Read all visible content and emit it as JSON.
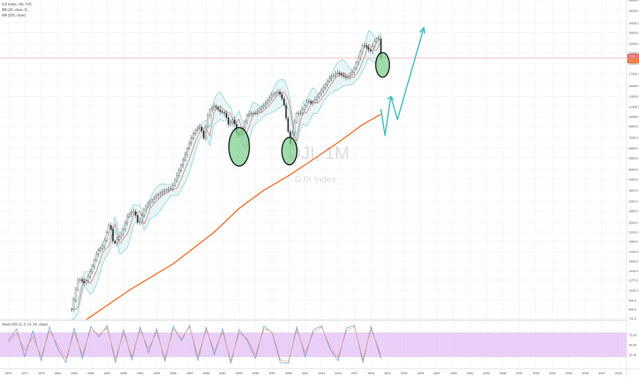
{
  "legend": {
    "symbol_line": "DJI Index, 1M, TVC",
    "bb_line": "BB (20, close, 2)",
    "ma_line": "MA (200, close)"
  },
  "watermark": {
    "symbol": "DJI, 1M",
    "name": "DJX Index"
  },
  "oscillator": {
    "label": "Stoch RSI (3, 3, 14, 14, close)"
  },
  "colors": {
    "grid": "#eeeeee",
    "candle": "#333333",
    "bb_band": "#6cc3c8",
    "bb_fill": "#e6f4f5",
    "bb_mid": "#c0392b",
    "ma": "#f0641e",
    "price_line": "#f3a5a5",
    "circle_fill": "#7fcf8f",
    "arrow": "#3fbcbd",
    "osc_band": "#e3bff5",
    "osc_k": "#5b8fd6",
    "osc_d": "#f29b6b"
  },
  "price_badges": [
    "9596.2",
    "872.15"
  ],
  "chart_data": [
    {
      "type": "line",
      "title": "DJI Index, 1M, TVC",
      "scale": "log",
      "ylim": [
        700,
        46000
      ],
      "y_ticks": [
        "46000.0",
        "40000.0",
        "34000.0",
        "30000.0",
        "26000.0",
        "23000.0",
        "20000.0",
        "17500.0",
        "15000.0",
        "13000.0",
        "11400.0",
        "10000.0",
        "8800.0",
        "7600.0",
        "6600.0",
        "5800.0",
        "5000.0",
        "4400.0",
        "3800.0",
        "3300.0",
        "2900.0",
        "2500.0",
        "2200.0",
        "1950.0",
        "1700.0",
        "1500.0",
        "1325.0",
        "1175.0",
        "1025.0",
        "900.0",
        "800.0",
        "710.0"
      ],
      "x_ticks": [
        "1975",
        "1977",
        "1979",
        "1981",
        "1983",
        "1985",
        "1987",
        "1989",
        "1991",
        "1993",
        "1995",
        "1997",
        "1999",
        "2001",
        "2003",
        "2005",
        "2007",
        "2009",
        "2011",
        "2013",
        "2015",
        "2017",
        "2019",
        "2021",
        "2023",
        "2025",
        "2027",
        "2029",
        "2031",
        "2033",
        "2035",
        "2037",
        "2039",
        "2041",
        "2043",
        "2045",
        "2047",
        "2049"
      ],
      "xlim": [
        1974,
        2050
      ],
      "price_series": {
        "name": "DJI",
        "x": [
          1982.7,
          1983.5,
          1984.3,
          1985,
          1985.8,
          1986.5,
          1987.3,
          1987.8,
          1988.2,
          1988.8,
          1989.5,
          1990.3,
          1990.8,
          1991.5,
          1992.3,
          1993,
          1994,
          1994.8,
          1995.5,
          1996.3,
          1997,
          1997.6,
          1998.3,
          1998.7,
          1999.3,
          2000,
          2000.7,
          2001.3,
          2001.7,
          2002.3,
          2002.8,
          2003.3,
          2004,
          2005,
          2006,
          2007,
          2007.8,
          2008.4,
          2008.9,
          2009.2,
          2009.9,
          2010.5,
          2011.3,
          2011.8,
          2012.5,
          2013.3,
          2014,
          2014.9,
          2015.6,
          2016.1,
          2016.8,
          2017.5,
          2018,
          2018.6,
          2018.9,
          2019.4,
          2019.9,
          2020.1,
          2020.2
        ],
        "y": [
          800,
          1200,
          1120,
          1320,
          1700,
          1830,
          2500,
          1840,
          2000,
          2160,
          2750,
          2900,
          2400,
          3000,
          3300,
          3550,
          3800,
          3900,
          4700,
          5800,
          7200,
          8300,
          8800,
          7500,
          10800,
          11500,
          10650,
          10400,
          9000,
          9700,
          7700,
          8200,
          10300,
          10500,
          11600,
          13300,
          13900,
          12000,
          8500,
          7000,
          10400,
          10500,
          12400,
          11800,
          13000,
          14900,
          16600,
          17800,
          17000,
          16500,
          18100,
          21900,
          25800,
          24400,
          23200,
          26500,
          28500,
          25400,
          21500
        ]
      },
      "ma_series": {
        "name": "MA (200, close)",
        "x": [
          1984.5,
          1990,
          1995,
          2000,
          2003,
          2006,
          2009,
          2012,
          2015,
          2018,
          2020.2
        ],
        "y": [
          700,
          1050,
          1450,
          2200,
          3000,
          3800,
          4600,
          5700,
          7100,
          9000,
          10300
        ]
      },
      "annotations": {
        "circles_at": [
          2003,
          2009.1,
          2020.4
        ],
        "arrow_path": {
          "x": [
            2020.2,
            2020.7,
            2021.4,
            2022.2,
            2025.4
          ],
          "y": [
            11000,
            7800,
            13000,
            9600,
            32000
          ]
        }
      }
    },
    {
      "type": "line",
      "title": "Stoch RSI (3, 3, 14, 14, close)",
      "ylim": [
        0,
        100
      ],
      "y_ticks": [
        "75.00",
        "50.00",
        "25.00"
      ],
      "band": [
        20,
        80
      ],
      "series": [
        {
          "name": "K",
          "x": [
            1975,
            1976,
            1977,
            1978,
            1979,
            1980,
            1981,
            1982,
            1983,
            1984,
            1985,
            1986,
            1987,
            1988,
            1989,
            1990,
            1991,
            1992,
            1993,
            1994,
            1995,
            1996,
            1997,
            1998,
            1999,
            2000,
            2001,
            2002,
            2003,
            2004,
            2005,
            2006,
            2007,
            2008,
            2009,
            2010,
            2011,
            2012,
            2013,
            2014,
            2015,
            2016,
            2017,
            2018,
            2019,
            2020.2
          ],
          "values": [
            60,
            90,
            20,
            85,
            10,
            95,
            40,
            5,
            92,
            15,
            96,
            70,
            98,
            5,
            88,
            12,
            95,
            30,
            90,
            8,
            97,
            60,
            99,
            10,
            94,
            25,
            90,
            3,
            88,
            60,
            15,
            97,
            80,
            5,
            4,
            95,
            20,
            88,
            98,
            40,
            10,
            92,
            99,
            5,
            96,
            15
          ]
        },
        {
          "name": "D",
          "x": [
            1975,
            1976,
            1977,
            1978,
            1979,
            1980,
            1981,
            1982,
            1983,
            1984,
            1985,
            1986,
            1987,
            1988,
            1989,
            1990,
            1991,
            1992,
            1993,
            1994,
            1995,
            1996,
            1997,
            1998,
            1999,
            2000,
            2001,
            2002,
            2003,
            2004,
            2005,
            2006,
            2007,
            2008,
            2009,
            2010,
            2011,
            2012,
            2013,
            2014,
            2015,
            2016,
            2017,
            2018,
            2019,
            2020.2
          ],
          "values": [
            55,
            80,
            35,
            70,
            20,
            85,
            50,
            15,
            80,
            25,
            88,
            75,
            92,
            15,
            80,
            20,
            88,
            40,
            82,
            15,
            90,
            65,
            95,
            20,
            88,
            35,
            82,
            10,
            80,
            65,
            25,
            90,
            82,
            12,
            8,
            88,
            30,
            80,
            95,
            45,
            18,
            85,
            96,
            12,
            90,
            25
          ]
        }
      ]
    }
  ]
}
